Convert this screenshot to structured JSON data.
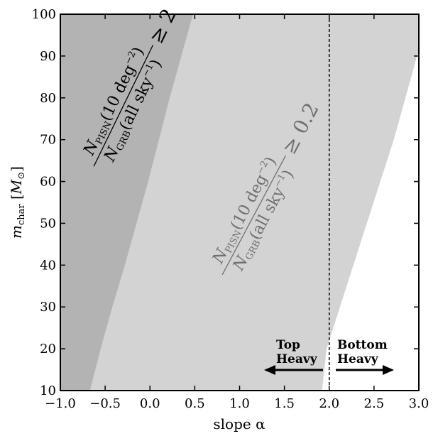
{
  "chart_data": {
    "type": "area",
    "xlabel": "slope α",
    "ylabel": "m_char [M⊙]",
    "xlim": [
      -1.0,
      3.0
    ],
    "ylim": [
      10,
      100
    ],
    "x_ticks": [
      "−1.0",
      "−0.5",
      "0.0",
      "0.5",
      "1.0",
      "1.5",
      "2.0",
      "2.5",
      "3.0"
    ],
    "x_tick_values": [
      -1.0,
      -0.5,
      0.0,
      0.5,
      1.0,
      1.5,
      2.0,
      2.5,
      3.0
    ],
    "y_ticks": [
      "10",
      "20",
      "30",
      "40",
      "50",
      "60",
      "70",
      "80",
      "90",
      "100"
    ],
    "y_tick_values": [
      10,
      20,
      30,
      40,
      50,
      60,
      70,
      80,
      90,
      100
    ],
    "regions": [
      {
        "label_main": "N_PISN(10 deg⁻²) / N_GRB(all sky⁻¹)",
        "label_numerator": "N",
        "label_numerator_sub": "PISN",
        "label_numerator_rest": "(10 deg",
        "label_numerator_sup": "−2",
        "label_numerator_close": ")",
        "label_denominator": "N",
        "label_denominator_sub": "GRB",
        "label_denominator_rest": "(all sky",
        "label_denominator_sup": "−1",
        "label_denominator_close": ")",
        "threshold": "≥ 2",
        "color": "#b3b3b3",
        "boundary": [
          [
            -0.67,
            10
          ],
          [
            -0.55,
            20
          ],
          [
            -0.42,
            30
          ],
          [
            -0.28,
            40
          ],
          [
            -0.15,
            50
          ],
          [
            -0.02,
            60
          ],
          [
            0.1,
            70
          ],
          [
            0.22,
            80
          ],
          [
            0.35,
            90
          ],
          [
            0.48,
            100
          ]
        ]
      },
      {
        "threshold": "≥ 0.2",
        "color": "#d3d3d3",
        "boundary": [
          [
            1.92,
            10
          ],
          [
            1.97,
            20
          ],
          [
            2.12,
            30
          ],
          [
            2.27,
            40
          ],
          [
            2.42,
            50
          ],
          [
            2.57,
            60
          ],
          [
            2.72,
            70
          ],
          [
            2.85,
            80
          ],
          [
            2.98,
            90
          ],
          [
            3.0,
            91
          ]
        ]
      }
    ],
    "reference_line": {
      "x": 2.0,
      "style": "dashed",
      "color": "#000000"
    },
    "annotations": [
      {
        "text_line1": "Top",
        "text_line2": "Heavy",
        "direction": "left"
      },
      {
        "text_line1": "Bottom",
        "text_line2": "Heavy",
        "direction": "right"
      }
    ],
    "grid": false
  }
}
